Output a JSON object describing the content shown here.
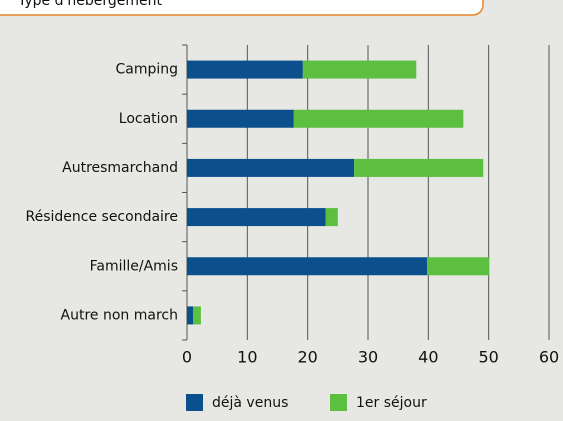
{
  "chart_data": {
    "type": "stacked-bar-horizontal",
    "title": "Type d'hébergement",
    "categories": [
      "Camping",
      "Location",
      "Autresmarchand",
      "Résidence secondaire",
      "Famille/Amis",
      "Autre non march"
    ],
    "series": [
      {
        "name": "déjà venus",
        "color": "#0b4f8c",
        "values": [
          19.2,
          17.7,
          27.7,
          23,
          39.8,
          1
        ]
      },
      {
        "name": "1er séjour",
        "color": "#5cbf3f",
        "values": [
          18.8,
          28.1,
          21.4,
          2,
          10.3,
          1.3
        ]
      }
    ],
    "xlim": [
      0,
      60
    ],
    "xticks": [
      0,
      10,
      20,
      30,
      40,
      50,
      60
    ],
    "grid": true
  }
}
